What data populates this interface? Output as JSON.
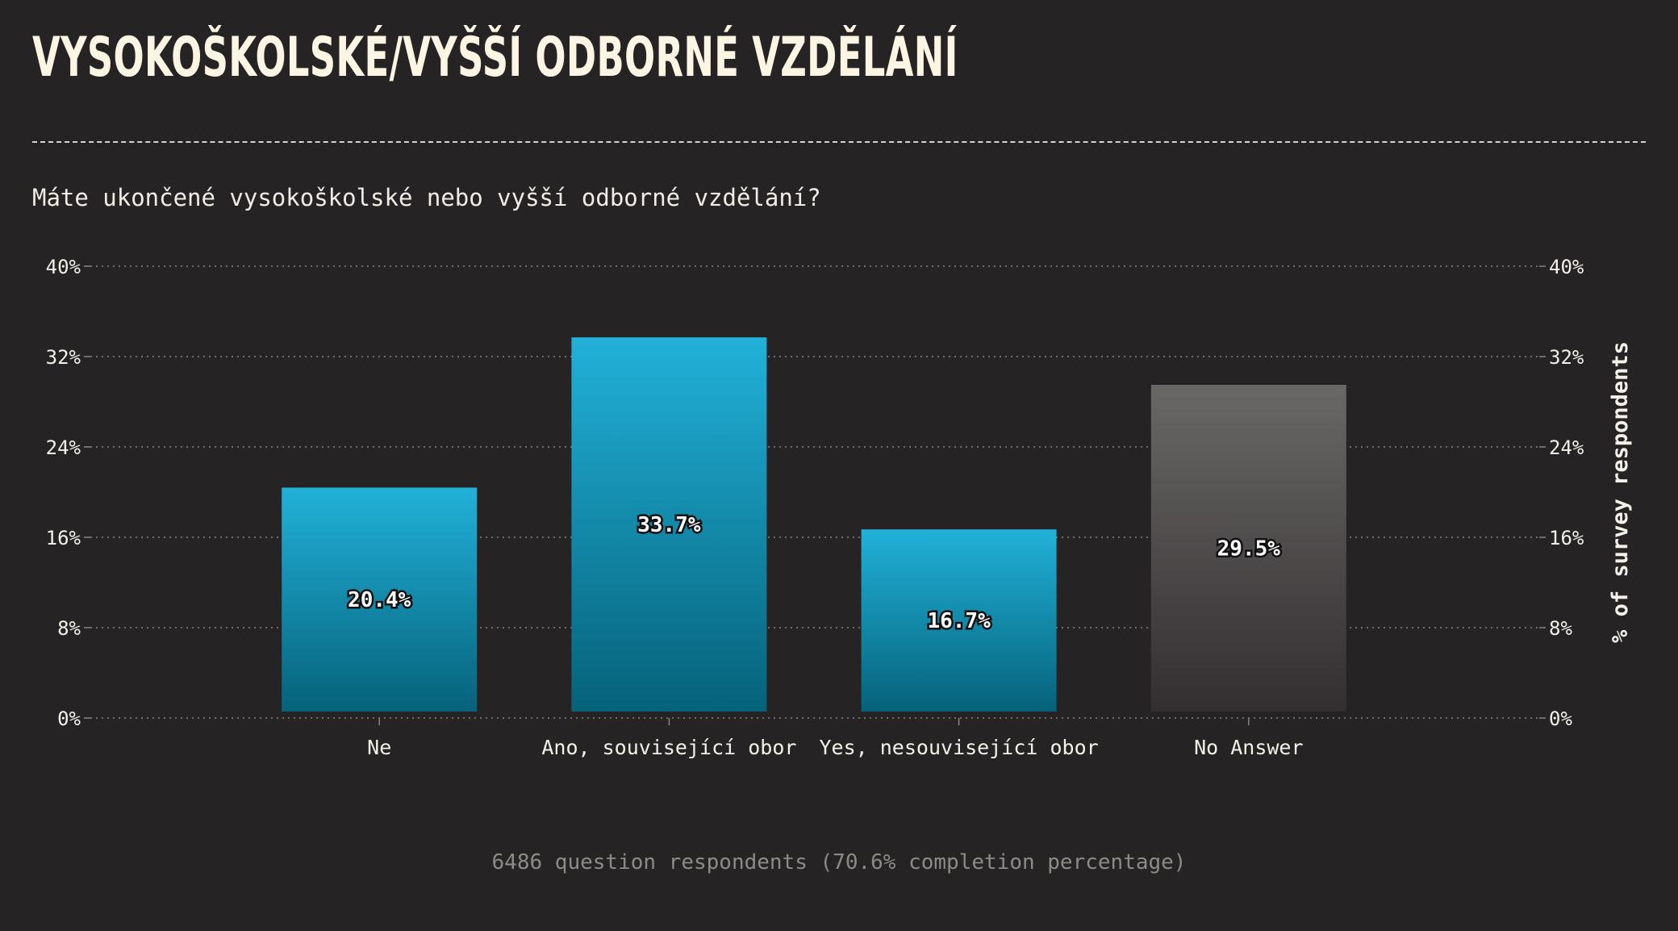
{
  "header": {
    "title": "VYSOKOŠKOLSKÉ/VYŠŠÍ ODBORNÉ VZDĚLÁNÍ",
    "question": "Máte ukončené vysokoškolské nebo vyšší odborné vzdělání?"
  },
  "footer": {
    "note": "6486 question respondents (70.6% completion percentage)"
  },
  "colors": {
    "background": "#262324",
    "bar_top": "#22b1d9",
    "bar_bottom": "#06627a",
    "na_top": "#6a6767",
    "na_bottom": "#332f30",
    "text": "#f4f1ea",
    "grid": "#8a8680"
  },
  "chart_data": {
    "type": "bar",
    "categories": [
      "Ne",
      "Ano, související obor",
      "Yes, nesouvisející obor",
      "No Answer"
    ],
    "values": [
      20.4,
      33.7,
      16.7,
      29.5
    ],
    "data_labels": [
      "20.4%",
      "33.7%",
      "16.7%",
      "29.5%"
    ],
    "highlight_last_as_no_answer": true,
    "ylim": [
      0,
      40
    ],
    "yticks": [
      0,
      8,
      16,
      24,
      32,
      40
    ],
    "ytick_labels": [
      "0%",
      "8%",
      "16%",
      "24%",
      "32%",
      "40%"
    ],
    "ylabel": "% of survey respondents",
    "ylabel_position": "right",
    "xlabel": "",
    "grid": true,
    "legend": "none"
  }
}
